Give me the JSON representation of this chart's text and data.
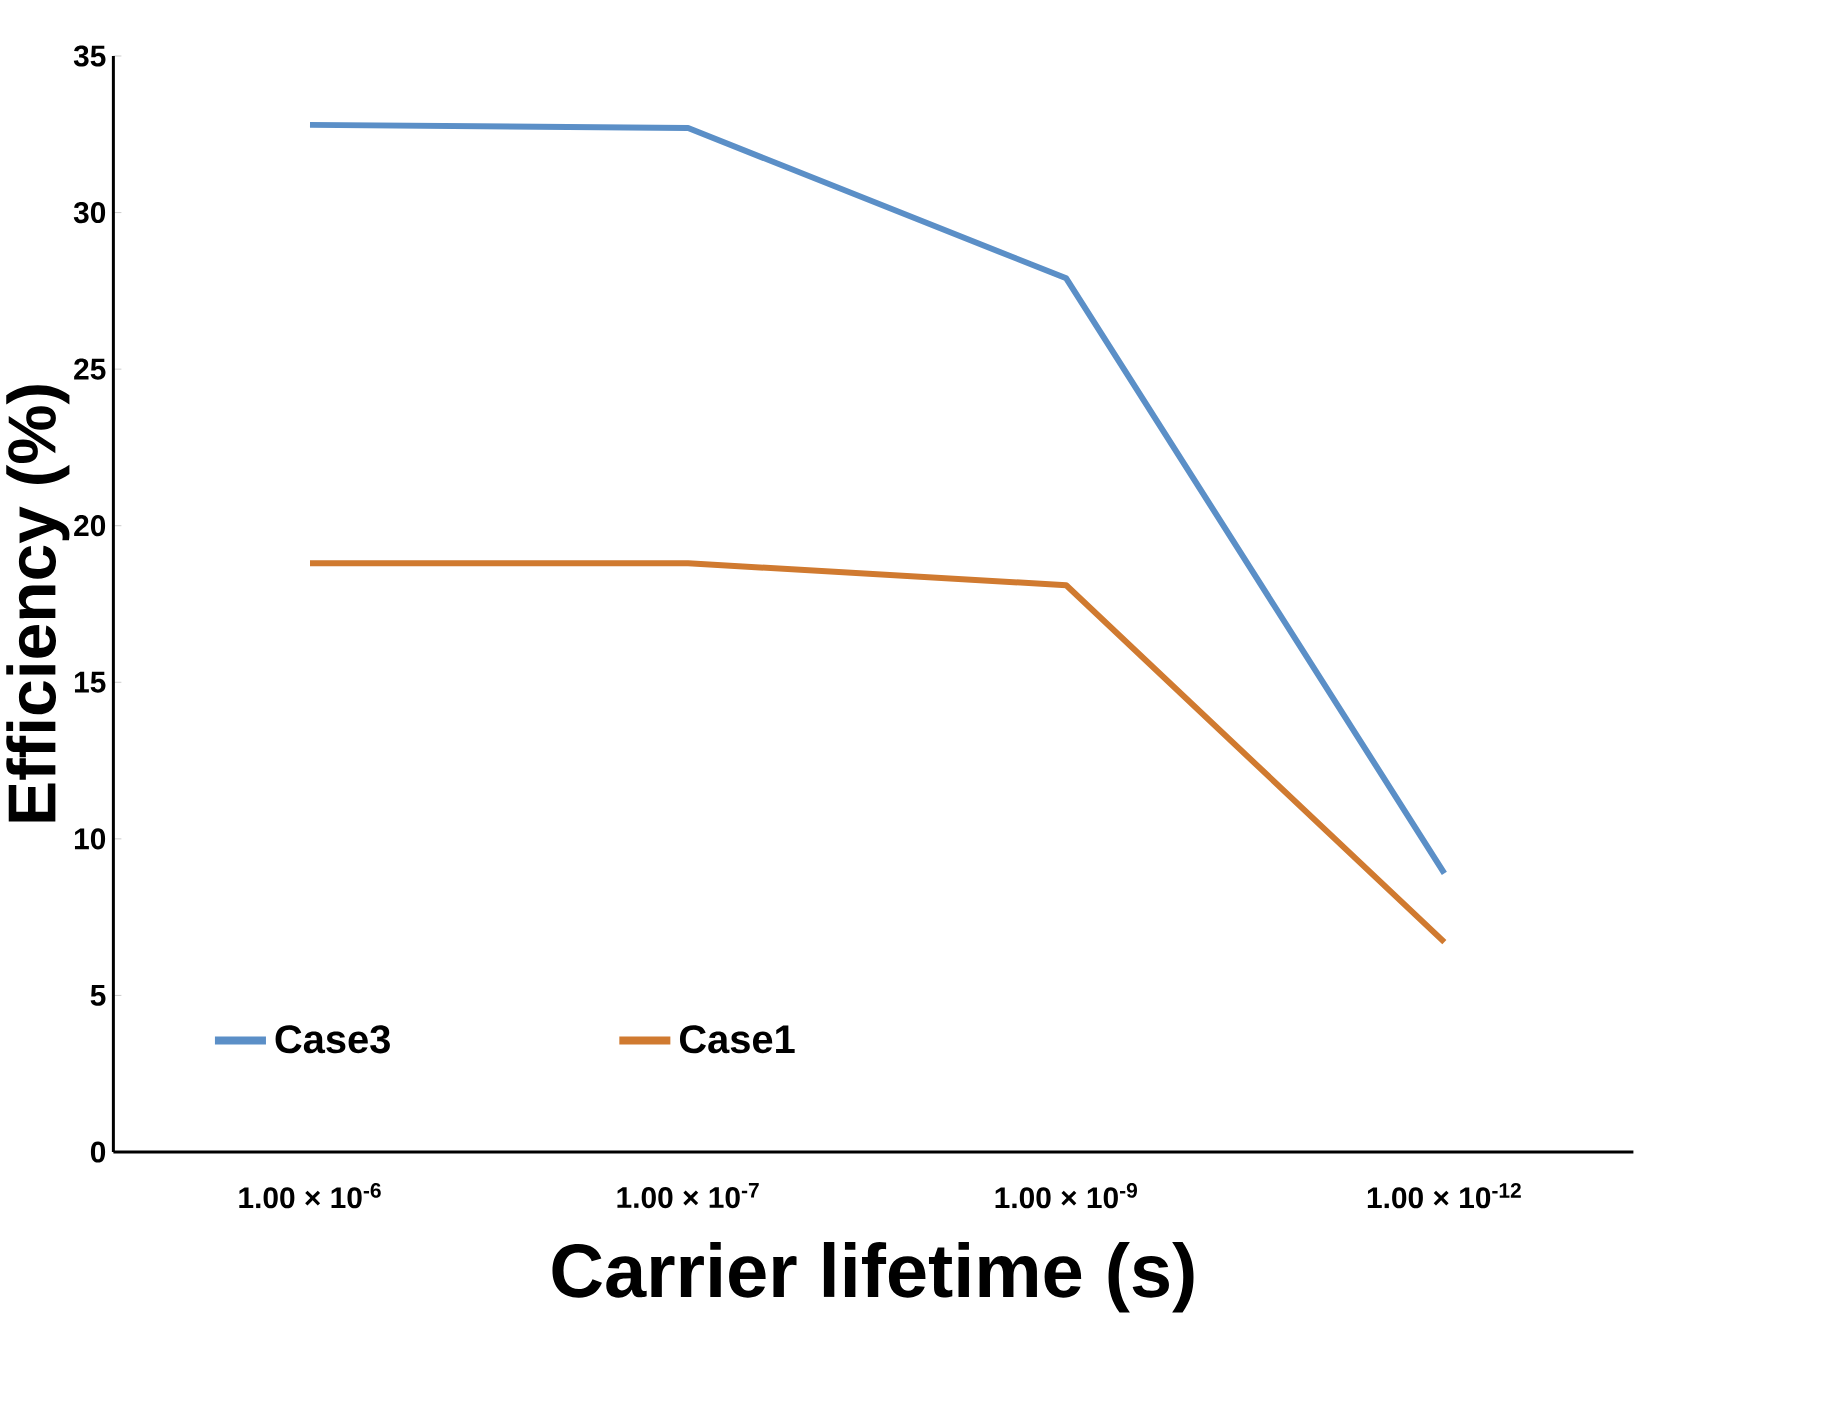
{
  "chart_data": {
    "type": "line",
    "xlabel": "Carrier lifetime (s)",
    "ylabel": "Efficiency (%)",
    "categories": [
      "1.00 × 10$^{-6}$",
      "1.00 × 10$^{-7}$",
      "1.00 × 10$^{-9}$",
      "1.00 × 10$^{-12}$"
    ],
    "series": [
      {
        "name": "Case3",
        "color": "#5b8fc7",
        "values": [
          32.8,
          32.7,
          27.9,
          8.9
        ]
      },
      {
        "name": "Case1",
        "color": "#d07a30",
        "values": [
          18.8,
          18.8,
          18.1,
          6.7
        ]
      }
    ],
    "ylim": [
      0,
      35
    ],
    "yticks": [
      0,
      5,
      10,
      15,
      20,
      25,
      30,
      35
    ],
    "legend": "bottom left",
    "grid": false,
    "marker": "none",
    "line_style": "solid"
  }
}
